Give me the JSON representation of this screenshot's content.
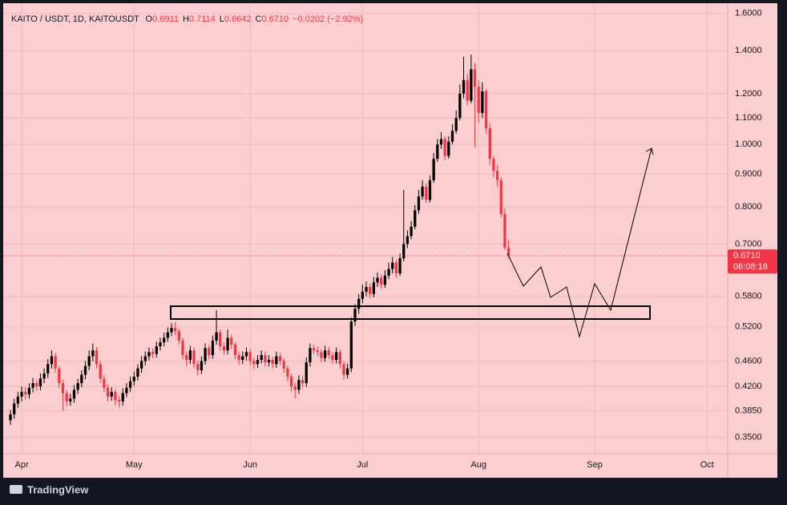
{
  "chart_data": {
    "type": "candlestick",
    "title": "KAITO / USDT, 1D, KAITOUSDT",
    "ohlc_legend": [
      {
        "label": "O",
        "value": "0.6911"
      },
      {
        "label": "H",
        "value": "0.7114"
      },
      {
        "label": "L",
        "value": "0.6642"
      },
      {
        "label": "C",
        "value": "0.6710"
      }
    ],
    "change": "−0.0202 (−2.92%)",
    "countdown": "06:08:18",
    "log_scale": true,
    "grid": true,
    "up_color": "#000000",
    "down_color": "#f23645",
    "ylim": [
      0.33,
      1.66
    ],
    "yticks": [
      {
        "value": 1.6,
        "label": "1.6000"
      },
      {
        "value": 1.4,
        "label": "1.4000"
      },
      {
        "value": 1.2,
        "label": "1.2000"
      },
      {
        "value": 1.1,
        "label": "1.1000"
      },
      {
        "value": 1.0,
        "label": "1.0000"
      },
      {
        "value": 0.9,
        "label": "0.9000"
      },
      {
        "value": 0.8,
        "label": "0.8000"
      },
      {
        "value": 0.7,
        "label": "0.7000"
      },
      {
        "value": 0.58,
        "label": "0.5800"
      },
      {
        "value": 0.52,
        "label": "0.5200"
      },
      {
        "value": 0.46,
        "label": "0.4600"
      },
      {
        "value": 0.42,
        "label": "0.4200"
      },
      {
        "value": 0.385,
        "label": "0.3850"
      },
      {
        "value": 0.35,
        "label": "0.3500"
      }
    ],
    "categories": [
      null,
      null,
      null,
      "Apr",
      null,
      null,
      null,
      null,
      null,
      null,
      null,
      null,
      null,
      null,
      null,
      null,
      null,
      null,
      null,
      null,
      null,
      null,
      null,
      null,
      null,
      null,
      null,
      null,
      null,
      null,
      null,
      null,
      null,
      "May",
      null,
      null,
      null,
      null,
      null,
      null,
      null,
      null,
      null,
      null,
      null,
      null,
      null,
      null,
      null,
      null,
      null,
      null,
      null,
      null,
      null,
      null,
      null,
      null,
      null,
      null,
      null,
      null,
      null,
      null,
      "Jun",
      null,
      null,
      null,
      null,
      null,
      null,
      null,
      null,
      null,
      null,
      null,
      null,
      null,
      null,
      null,
      null,
      null,
      null,
      null,
      null,
      null,
      null,
      null,
      null,
      null,
      null,
      null,
      null,
      null,
      "Jul",
      null,
      null,
      null,
      null,
      null,
      null,
      null,
      null,
      null,
      null,
      null,
      null,
      null,
      null,
      null,
      null,
      null,
      null,
      null,
      null,
      null,
      null,
      null,
      null,
      null,
      null,
      null,
      null,
      null,
      null,
      "Aug",
      null,
      null,
      null,
      null,
      null,
      null,
      null,
      null,
      null,
      null,
      null,
      null,
      null,
      null,
      null,
      null,
      null,
      null,
      null,
      null,
      null,
      null,
      null,
      null,
      null,
      null,
      null,
      null,
      null,
      null,
      "Sep",
      null,
      null,
      null,
      null,
      null,
      null,
      null,
      null,
      null,
      null,
      null,
      null,
      null,
      null,
      null,
      null,
      null,
      null,
      null,
      null,
      null,
      null,
      null,
      null,
      null,
      null,
      null,
      null,
      null,
      "Oct",
      null,
      null,
      null,
      null,
      null
    ],
    "open": [
      0.372,
      0.38,
      0.395,
      0.405,
      0.412,
      0.408,
      0.418,
      0.425,
      0.42,
      0.432,
      0.44,
      0.455,
      0.468,
      0.448,
      0.425,
      0.41,
      0.398,
      0.402,
      0.415,
      0.425,
      0.438,
      0.452,
      0.468,
      0.478,
      0.455,
      0.432,
      0.418,
      0.405,
      0.412,
      0.4,
      0.398,
      0.41,
      0.418,
      0.428,
      0.435,
      0.448,
      0.46,
      0.468,
      0.475,
      0.472,
      0.485,
      0.492,
      0.5,
      0.51,
      0.518,
      0.512,
      0.495,
      0.47,
      0.462,
      0.478,
      0.455,
      0.445,
      0.46,
      0.482,
      0.47,
      0.495,
      0.51,
      0.485,
      0.478,
      0.5,
      0.488,
      0.47,
      0.462,
      0.468,
      0.475,
      0.46,
      0.455,
      0.462,
      0.47,
      0.458,
      0.462,
      0.455,
      0.468,
      0.46,
      0.448,
      0.435,
      0.42,
      0.415,
      0.43,
      0.425,
      0.458,
      0.482,
      0.478,
      0.475,
      0.465,
      0.478,
      0.47,
      0.462,
      0.475,
      0.455,
      0.438,
      0.448,
      0.53,
      0.555,
      0.575,
      0.59,
      0.6,
      0.585,
      0.61,
      0.62,
      0.605,
      0.625,
      0.64,
      0.655,
      0.63,
      0.665,
      0.7,
      0.72,
      0.745,
      0.79,
      0.83,
      0.86,
      0.82,
      0.88,
      0.95,
      1.0,
      1.02,
      0.96,
      1.01,
      1.05,
      1.1,
      1.2,
      1.26,
      1.17,
      1.31,
      1.23,
      1.12,
      1.21,
      1.06,
      0.95,
      0.91,
      0.88,
      0.78,
      0.6911,
      null,
      null,
      null,
      null,
      null,
      null,
      null,
      null,
      null,
      null,
      null,
      null,
      null,
      null,
      null,
      null,
      null,
      null,
      null,
      null,
      null,
      null,
      null,
      null,
      null,
      null,
      null,
      null,
      null,
      null,
      null,
      null,
      null,
      null,
      null,
      null,
      null,
      null,
      null,
      null,
      null,
      null,
      null,
      null,
      null,
      null,
      null,
      null,
      null,
      null,
      null,
      null,
      null,
      null,
      null,
      null,
      null,
      null
    ],
    "high": [
      0.386,
      0.402,
      0.412,
      0.42,
      0.419,
      0.425,
      0.433,
      0.43,
      0.44,
      0.448,
      0.463,
      0.478,
      0.474,
      0.452,
      0.43,
      0.415,
      0.409,
      0.422,
      0.432,
      0.445,
      0.46,
      0.478,
      0.49,
      0.483,
      0.46,
      0.437,
      0.423,
      0.419,
      0.416,
      0.406,
      0.417,
      0.425,
      0.435,
      0.443,
      0.455,
      0.468,
      0.476,
      0.483,
      0.481,
      0.493,
      0.5,
      0.509,
      0.519,
      0.527,
      0.528,
      0.517,
      0.5,
      0.476,
      0.486,
      0.483,
      0.461,
      0.468,
      0.49,
      0.488,
      0.504,
      0.552,
      0.515,
      0.492,
      0.515,
      0.506,
      0.493,
      0.476,
      0.476,
      0.483,
      0.48,
      0.466,
      0.47,
      0.478,
      0.476,
      0.47,
      0.467,
      0.476,
      0.474,
      0.465,
      0.453,
      0.44,
      0.426,
      0.437,
      0.436,
      0.466,
      0.49,
      0.488,
      0.485,
      0.48,
      0.486,
      0.484,
      0.475,
      0.483,
      0.48,
      0.46,
      0.456,
      0.538,
      0.564,
      0.585,
      0.605,
      0.612,
      0.608,
      0.622,
      0.632,
      0.628,
      0.637,
      0.655,
      0.668,
      0.662,
      0.676,
      0.85,
      0.735,
      0.76,
      0.805,
      0.85,
      0.88,
      0.87,
      0.895,
      0.97,
      1.02,
      1.045,
      1.03,
      1.03,
      1.075,
      1.13,
      1.24,
      1.37,
      1.29,
      1.38,
      1.34,
      1.26,
      1.25,
      1.22,
      1.08,
      0.96,
      0.93,
      0.89,
      0.795,
      0.7114,
      null,
      null,
      null,
      null,
      null,
      null,
      null,
      null,
      null,
      null,
      null,
      null,
      null,
      null,
      null,
      null,
      null,
      null,
      null,
      null,
      null,
      null,
      null,
      null,
      null,
      null,
      null,
      null,
      null,
      null,
      null,
      null,
      null,
      null,
      null,
      null,
      null,
      null,
      null,
      null,
      null,
      null,
      null,
      null,
      null,
      null,
      null,
      null,
      null,
      null,
      null,
      null,
      null,
      null,
      null,
      null,
      null,
      null
    ],
    "low": [
      0.366,
      0.374,
      0.389,
      0.398,
      0.401,
      0.402,
      0.411,
      0.413,
      0.414,
      0.425,
      0.433,
      0.448,
      0.441,
      0.418,
      0.385,
      0.391,
      0.392,
      0.396,
      0.409,
      0.419,
      0.431,
      0.445,
      0.46,
      0.448,
      0.425,
      0.411,
      0.398,
      0.399,
      0.392,
      0.39,
      0.392,
      0.404,
      0.412,
      0.421,
      0.429,
      0.441,
      0.453,
      0.461,
      0.465,
      0.466,
      0.478,
      0.485,
      0.493,
      0.503,
      0.505,
      0.488,
      0.463,
      0.452,
      0.455,
      0.448,
      0.437,
      0.439,
      0.454,
      0.463,
      0.464,
      0.488,
      0.478,
      0.47,
      0.471,
      0.481,
      0.463,
      0.454,
      0.455,
      0.461,
      0.453,
      0.447,
      0.449,
      0.456,
      0.451,
      0.451,
      0.448,
      0.449,
      0.453,
      0.441,
      0.428,
      0.412,
      0.402,
      0.409,
      0.418,
      0.419,
      0.451,
      0.471,
      0.468,
      0.458,
      0.459,
      0.463,
      0.455,
      0.456,
      0.448,
      0.43,
      0.432,
      0.442,
      0.522,
      0.545,
      0.566,
      0.58,
      0.576,
      0.578,
      0.6,
      0.596,
      0.598,
      0.617,
      0.63,
      0.62,
      0.624,
      0.658,
      0.69,
      0.712,
      0.738,
      0.78,
      0.82,
      0.81,
      0.812,
      0.872,
      0.94,
      0.985,
      0.945,
      0.95,
      1.0,
      1.04,
      1.09,
      1.18,
      1.15,
      1.16,
      0.99,
      1.08,
      1.1,
      1.04,
      0.93,
      0.89,
      0.86,
      0.77,
      0.685,
      0.6642,
      null,
      null,
      null,
      null,
      null,
      null,
      null,
      null,
      null,
      null,
      null,
      null,
      null,
      null,
      null,
      null,
      null,
      null,
      null,
      null,
      null,
      null,
      null,
      null,
      null,
      null,
      null,
      null,
      null,
      null,
      null,
      null,
      null,
      null,
      null,
      null,
      null,
      null,
      null,
      null,
      null,
      null,
      null,
      null,
      null,
      null,
      null,
      null,
      null,
      null,
      null,
      null,
      null,
      null,
      null,
      null,
      null,
      null
    ],
    "close": [
      0.38,
      0.395,
      0.405,
      0.412,
      0.408,
      0.418,
      0.425,
      0.42,
      0.432,
      0.44,
      0.455,
      0.468,
      0.448,
      0.425,
      0.41,
      0.398,
      0.402,
      0.415,
      0.425,
      0.438,
      0.452,
      0.468,
      0.478,
      0.455,
      0.432,
      0.418,
      0.405,
      0.412,
      0.4,
      0.398,
      0.41,
      0.418,
      0.428,
      0.435,
      0.448,
      0.46,
      0.468,
      0.475,
      0.472,
      0.485,
      0.492,
      0.5,
      0.51,
      0.518,
      0.512,
      0.495,
      0.47,
      0.462,
      0.478,
      0.455,
      0.445,
      0.46,
      0.482,
      0.47,
      0.495,
      0.51,
      0.485,
      0.478,
      0.5,
      0.488,
      0.47,
      0.462,
      0.468,
      0.475,
      0.46,
      0.455,
      0.462,
      0.47,
      0.458,
      0.462,
      0.455,
      0.468,
      0.46,
      0.448,
      0.435,
      0.42,
      0.415,
      0.43,
      0.425,
      0.458,
      0.482,
      0.478,
      0.475,
      0.465,
      0.478,
      0.47,
      0.462,
      0.475,
      0.455,
      0.438,
      0.448,
      0.53,
      0.555,
      0.575,
      0.59,
      0.6,
      0.585,
      0.61,
      0.62,
      0.605,
      0.625,
      0.64,
      0.655,
      0.63,
      0.665,
      0.7,
      0.72,
      0.745,
      0.79,
      0.83,
      0.86,
      0.82,
      0.88,
      0.95,
      1.0,
      1.02,
      0.96,
      1.01,
      1.05,
      1.1,
      1.2,
      1.26,
      1.17,
      1.31,
      1.23,
      1.12,
      1.21,
      1.06,
      0.95,
      0.91,
      0.88,
      0.78,
      0.691,
      0.671,
      null,
      null,
      null,
      null,
      null,
      null,
      null,
      null,
      null,
      null,
      null,
      null,
      null,
      null,
      null,
      null,
      null,
      null,
      null,
      null,
      null,
      null,
      null,
      null,
      null,
      null,
      null,
      null,
      null,
      null,
      null,
      null,
      null,
      null,
      null,
      null,
      null,
      null,
      null,
      null,
      null,
      null,
      null,
      null,
      null,
      null,
      null,
      null,
      null,
      null,
      null,
      null,
      null,
      null,
      null,
      null,
      null,
      null
    ]
  },
  "footer": {
    "brand": "TradingView"
  }
}
